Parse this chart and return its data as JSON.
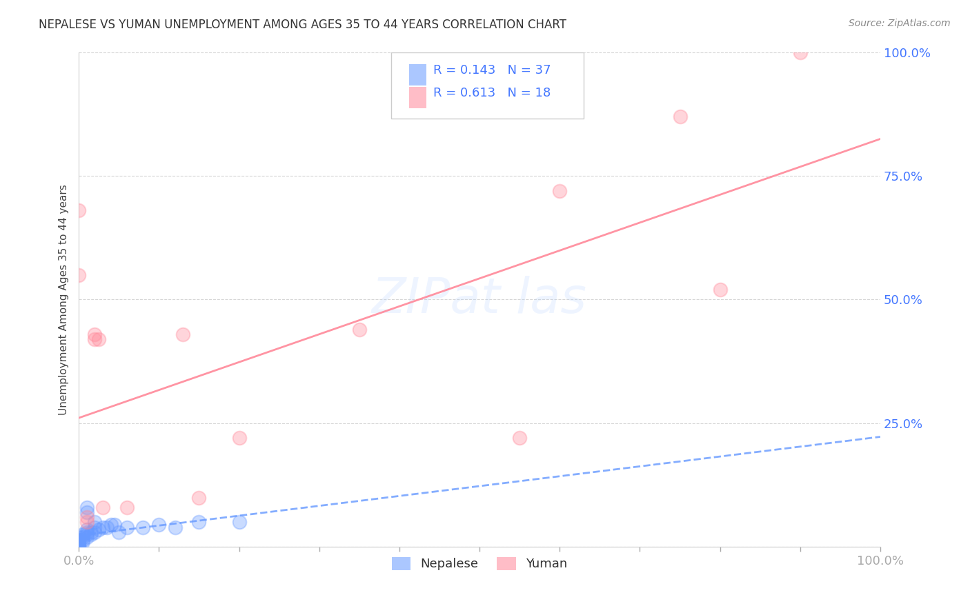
{
  "title": "NEPALESE VS YUMAN UNEMPLOYMENT AMONG AGES 35 TO 44 YEARS CORRELATION CHART",
  "source": "Source: ZipAtlas.com",
  "ylabel": "Unemployment Among Ages 35 to 44 years",
  "nepalese_color": "#6699ff",
  "yuman_color": "#ff8899",
  "nepalese_points": [
    [
      0.0,
      0.0
    ],
    [
      0.0,
      0.0
    ],
    [
      0.0,
      0.0
    ],
    [
      0.0,
      0.005
    ],
    [
      0.0,
      0.005
    ],
    [
      0.0,
      0.01
    ],
    [
      0.0,
      0.01
    ],
    [
      0.0,
      0.015
    ],
    [
      0.0,
      0.015
    ],
    [
      0.0,
      0.02
    ],
    [
      0.005,
      0.01
    ],
    [
      0.005,
      0.015
    ],
    [
      0.005,
      0.02
    ],
    [
      0.005,
      0.025
    ],
    [
      0.01,
      0.02
    ],
    [
      0.01,
      0.025
    ],
    [
      0.01,
      0.03
    ],
    [
      0.01,
      0.035
    ],
    [
      0.01,
      0.07
    ],
    [
      0.01,
      0.08
    ],
    [
      0.015,
      0.025
    ],
    [
      0.015,
      0.03
    ],
    [
      0.02,
      0.03
    ],
    [
      0.02,
      0.04
    ],
    [
      0.02,
      0.05
    ],
    [
      0.025,
      0.035
    ],
    [
      0.03,
      0.04
    ],
    [
      0.035,
      0.04
    ],
    [
      0.04,
      0.045
    ],
    [
      0.045,
      0.045
    ],
    [
      0.05,
      0.03
    ],
    [
      0.06,
      0.04
    ],
    [
      0.08,
      0.04
    ],
    [
      0.1,
      0.045
    ],
    [
      0.12,
      0.04
    ],
    [
      0.15,
      0.05
    ],
    [
      0.2,
      0.05
    ]
  ],
  "yuman_points": [
    [
      0.0,
      0.68
    ],
    [
      0.0,
      0.55
    ],
    [
      0.01,
      0.05
    ],
    [
      0.01,
      0.06
    ],
    [
      0.02,
      0.42
    ],
    [
      0.02,
      0.43
    ],
    [
      0.025,
      0.42
    ],
    [
      0.03,
      0.08
    ],
    [
      0.06,
      0.08
    ],
    [
      0.13,
      0.43
    ],
    [
      0.15,
      0.1
    ],
    [
      0.2,
      0.22
    ],
    [
      0.35,
      0.44
    ],
    [
      0.55,
      0.22
    ],
    [
      0.6,
      0.72
    ],
    [
      0.75,
      0.87
    ],
    [
      0.8,
      0.52
    ],
    [
      0.9,
      1.0
    ]
  ],
  "nepalese_R": 0.143,
  "nepalese_N": 37,
  "yuman_R": 0.613,
  "yuman_N": 18,
  "xlim": [
    0.0,
    1.0
  ],
  "ylim": [
    0.0,
    1.0
  ],
  "background_color": "#ffffff",
  "grid_color": "#cccccc",
  "watermark_color": "#aaccff"
}
